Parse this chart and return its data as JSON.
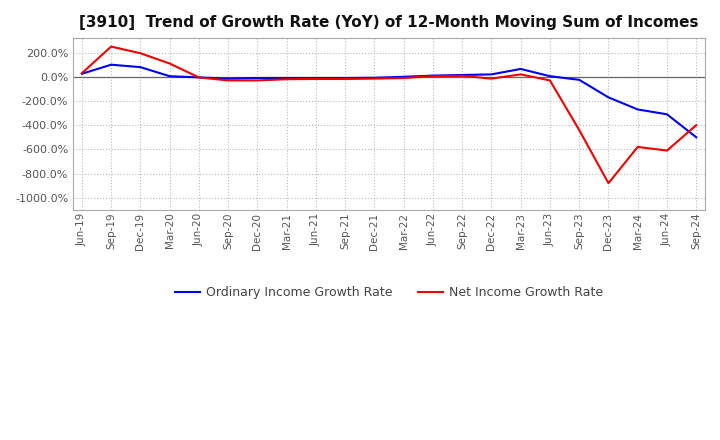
{
  "title": "[3910]  Trend of Growth Rate (YoY) of 12-Month Moving Sum of Incomes",
  "title_fontsize": 11,
  "ylim": [
    -1100,
    320
  ],
  "yticks": [
    200,
    0,
    -200,
    -400,
    -600,
    -800,
    -1000
  ],
  "background_color": "#ffffff",
  "plot_bg_color": "#ffffff",
  "grid_color": "#bbbbbb",
  "legend_labels": [
    "Ordinary Income Growth Rate",
    "Net Income Growth Rate"
  ],
  "legend_colors": [
    "#0000ee",
    "#ee0000"
  ],
  "x_labels": [
    "Jun-19",
    "Sep-19",
    "Dec-19",
    "Mar-20",
    "Jun-20",
    "Sep-20",
    "Dec-20",
    "Mar-21",
    "Jun-21",
    "Sep-21",
    "Dec-21",
    "Mar-22",
    "Jun-22",
    "Sep-22",
    "Dec-22",
    "Mar-23",
    "Jun-23",
    "Sep-23",
    "Dec-23",
    "Mar-24",
    "Jun-24",
    "Sep-24"
  ],
  "ordinary_income_growth": [
    25,
    100,
    80,
    5,
    -5,
    -15,
    -10,
    -10,
    -10,
    -10,
    -8,
    0,
    10,
    15,
    20,
    65,
    5,
    -25,
    -170,
    -270,
    -310,
    -500
  ],
  "net_income_growth": [
    30,
    250,
    195,
    110,
    -5,
    -30,
    -30,
    -20,
    -18,
    -18,
    -15,
    -10,
    5,
    8,
    -15,
    20,
    -30,
    -440,
    -880,
    -580,
    -610,
    -400
  ]
}
